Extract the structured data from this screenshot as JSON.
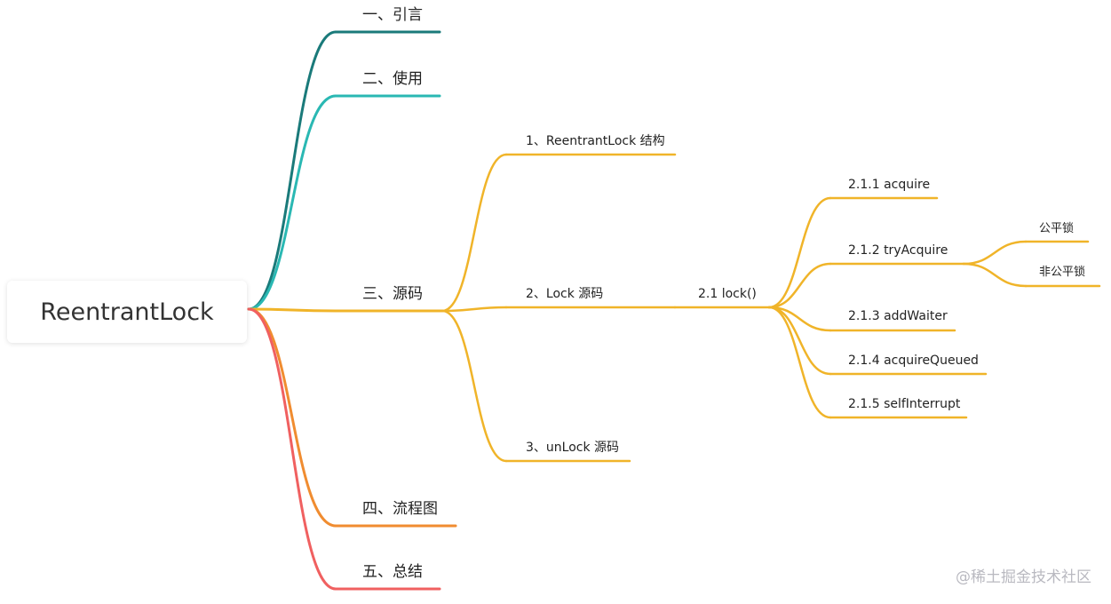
{
  "root": {
    "label": "ReentrantLock"
  },
  "colors": {
    "c1": "#1a7a7a",
    "c2": "#2ab8b3",
    "c3": "#f0b429",
    "c4": "#f08c30",
    "c5": "#f06060"
  },
  "nodes": {
    "n1": {
      "label": "一、引言"
    },
    "n2": {
      "label": "二、使用"
    },
    "n3": {
      "label": "三、源码"
    },
    "n3_1": {
      "label": "1、ReentrantLock 结构"
    },
    "n3_2": {
      "label": "2、Lock 源码"
    },
    "n3_2_1": {
      "label": "2.1 lock()"
    },
    "n3_2_1_1": {
      "label": "2.1.1 acquire"
    },
    "n3_2_1_2": {
      "label": "2.1.2 tryAcquire"
    },
    "n3_2_1_2_1": {
      "label": "公平锁"
    },
    "n3_2_1_2_2": {
      "label": "非公平锁"
    },
    "n3_2_1_3": {
      "label": "2.1.3 addWaiter"
    },
    "n3_2_1_4": {
      "label": "2.1.4 acquireQueued"
    },
    "n3_2_1_5": {
      "label": "2.1.5 selfInterrupt"
    },
    "n3_3": {
      "label": "3、unLock 源码"
    },
    "n4": {
      "label": "四、流程图"
    },
    "n5": {
      "label": "五、总结"
    }
  },
  "watermark": "@稀土掘金技术社区"
}
